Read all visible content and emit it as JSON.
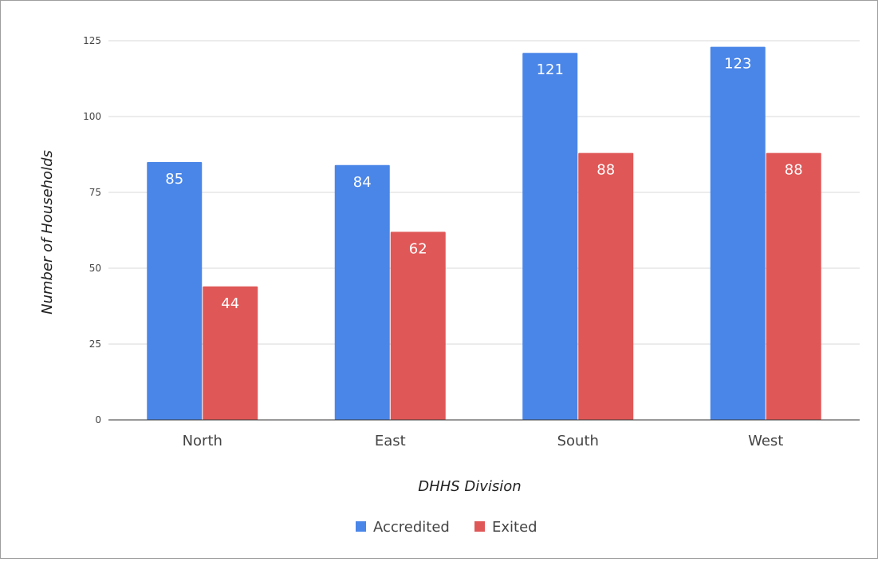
{
  "chart_data": {
    "type": "bar",
    "title": "",
    "xlabel": "DHHS Division",
    "ylabel": "Number of Households",
    "categories": [
      "North",
      "East",
      "South",
      "West"
    ],
    "series": [
      {
        "name": "Accredited",
        "values": [
          85,
          84,
          121,
          123
        ],
        "color": "#4a86e8"
      },
      {
        "name": "Exited",
        "values": [
          44,
          62,
          88,
          88
        ],
        "color": "#e05757"
      }
    ],
    "ylim": [
      0,
      125
    ],
    "yticks": [
      0,
      25,
      50,
      75,
      100,
      125
    ],
    "grid": true,
    "legend_position": "bottom",
    "data_labels": true
  }
}
